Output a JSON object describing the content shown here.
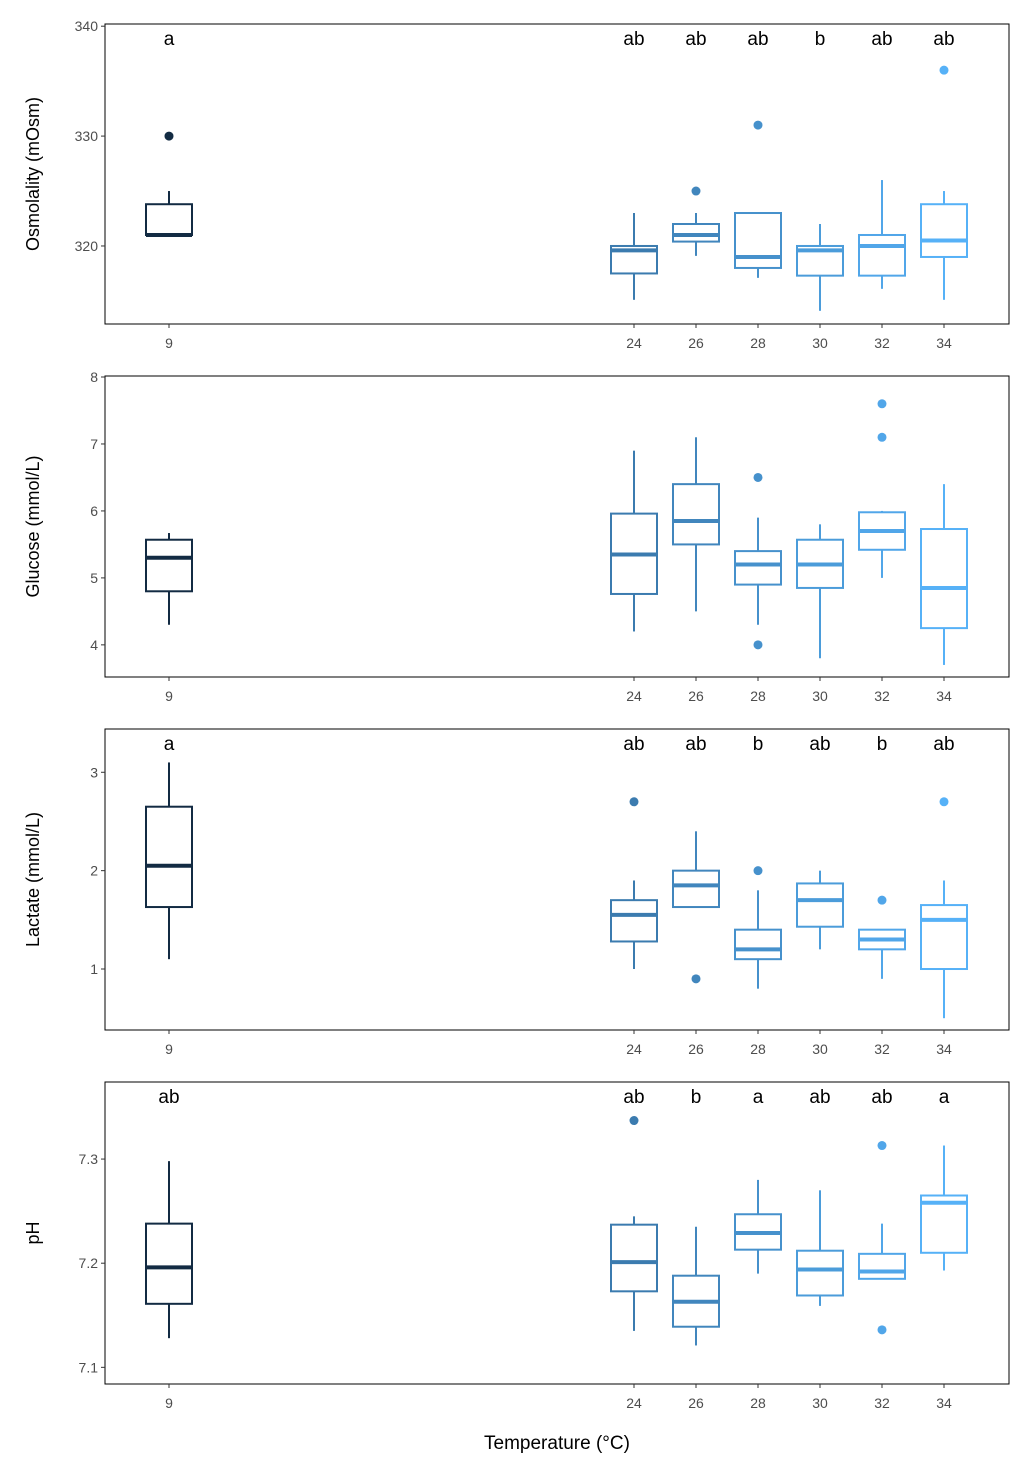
{
  "chart_data": [
    {
      "type": "box",
      "ylabel": "Osmolality (mOsm)",
      "xlabel": "",
      "categories": [
        "9",
        "24",
        "26",
        "28",
        "30",
        "32",
        "34"
      ],
      "ylim": [
        312.9,
        340.2
      ],
      "yticks": [
        320,
        330,
        340
      ],
      "letters": [
        "a",
        "ab",
        "ab",
        "ab",
        "b",
        "ab",
        "ab"
      ],
      "boxes": [
        {
          "lower": 321,
          "q1": 321,
          "median": 321,
          "q3": 323.8,
          "upper": 325,
          "outliers": [
            330
          ]
        },
        {
          "lower": 315.1,
          "q1": 317.5,
          "median": 319.6,
          "q3": 320,
          "upper": 323,
          "outliers": []
        },
        {
          "lower": 319.1,
          "q1": 320.4,
          "median": 321,
          "q3": 322,
          "upper": 323,
          "outliers": [
            325
          ]
        },
        {
          "lower": 317.1,
          "q1": 318,
          "median": 319,
          "q3": 323,
          "upper": 323,
          "outliers": [
            331
          ]
        },
        {
          "lower": 314.1,
          "q1": 317.3,
          "median": 319.6,
          "q3": 320,
          "upper": 322,
          "outliers": []
        },
        {
          "lower": 316.1,
          "q1": 317.3,
          "median": 320,
          "q3": 321,
          "upper": 326,
          "outliers": []
        },
        {
          "lower": 315.1,
          "q1": 319,
          "median": 320.5,
          "q3": 323.8,
          "upper": 325,
          "outliers": [
            336
          ]
        }
      ]
    },
    {
      "type": "box",
      "ylabel": "Glucose (mmol/L)",
      "xlabel": "",
      "categories": [
        "9",
        "24",
        "26",
        "28",
        "30",
        "32",
        "34"
      ],
      "ylim": [
        3.52,
        8.015
      ],
      "yticks": [
        4,
        5,
        6,
        7,
        8
      ],
      "letters": [],
      "boxes": [
        {
          "lower": 4.3,
          "q1": 4.8,
          "median": 5.3,
          "q3": 5.57,
          "upper": 5.67,
          "outliers": []
        },
        {
          "lower": 4.2,
          "q1": 4.76,
          "median": 5.35,
          "q3": 5.96,
          "upper": 6.9,
          "outliers": []
        },
        {
          "lower": 4.5,
          "q1": 5.5,
          "median": 5.85,
          "q3": 6.4,
          "upper": 7.1,
          "outliers": []
        },
        {
          "lower": 4.3,
          "q1": 4.9,
          "median": 5.2,
          "q3": 5.4,
          "upper": 5.9,
          "outliers": [
            6.5,
            4.0
          ]
        },
        {
          "lower": 3.8,
          "q1": 4.85,
          "median": 5.2,
          "q3": 5.57,
          "upper": 5.8,
          "outliers": []
        },
        {
          "lower": 5.0,
          "q1": 5.42,
          "median": 5.7,
          "q3": 5.98,
          "upper": 6.0,
          "outliers": [
            7.6,
            7.1
          ]
        },
        {
          "lower": 3.7,
          "q1": 4.25,
          "median": 4.85,
          "q3": 5.73,
          "upper": 6.4,
          "outliers": []
        }
      ]
    },
    {
      "type": "box",
      "ylabel": "Lactate (mmol/L)",
      "xlabel": "",
      "categories": [
        "9",
        "24",
        "26",
        "28",
        "30",
        "32",
        "34"
      ],
      "ylim": [
        0.38,
        3.44
      ],
      "yticks": [
        1,
        2,
        3
      ],
      "letters": [
        "a",
        "ab",
        "ab",
        "b",
        "ab",
        "b",
        "ab"
      ],
      "boxes": [
        {
          "lower": 1.1,
          "q1": 1.63,
          "median": 2.05,
          "q3": 2.65,
          "upper": 3.1,
          "outliers": []
        },
        {
          "lower": 1.0,
          "q1": 1.28,
          "median": 1.55,
          "q3": 1.7,
          "upper": 1.9,
          "outliers": [
            2.7
          ]
        },
        {
          "lower": 1.63,
          "q1": 1.63,
          "median": 1.85,
          "q3": 2.0,
          "upper": 2.4,
          "outliers": [
            0.9
          ]
        },
        {
          "lower": 0.8,
          "q1": 1.1,
          "median": 1.2,
          "q3": 1.4,
          "upper": 1.8,
          "outliers": [
            2.0
          ]
        },
        {
          "lower": 1.2,
          "q1": 1.43,
          "median": 1.7,
          "q3": 1.87,
          "upper": 2.0,
          "outliers": []
        },
        {
          "lower": 0.9,
          "q1": 1.2,
          "median": 1.3,
          "q3": 1.4,
          "upper": 1.4,
          "outliers": [
            1.7
          ]
        },
        {
          "lower": 0.5,
          "q1": 1.0,
          "median": 1.5,
          "q3": 1.65,
          "upper": 1.9,
          "outliers": [
            2.7
          ]
        }
      ]
    },
    {
      "type": "box",
      "ylabel": "pH",
      "xlabel": "Temperature (°C)",
      "categories": [
        "9",
        "24",
        "26",
        "28",
        "30",
        "32",
        "34"
      ],
      "ylim": [
        7.084,
        7.374
      ],
      "yticks": [
        7.1,
        7.2,
        7.3
      ],
      "letters": [
        "ab",
        "ab",
        "b",
        "a",
        "ab",
        "ab",
        "a"
      ],
      "boxes": [
        {
          "lower": 7.128,
          "q1": 7.161,
          "median": 7.196,
          "q3": 7.238,
          "upper": 7.298,
          "outliers": []
        },
        {
          "lower": 7.135,
          "q1": 7.173,
          "median": 7.201,
          "q3": 7.237,
          "upper": 7.245,
          "outliers": [
            7.337
          ]
        },
        {
          "lower": 7.121,
          "q1": 7.139,
          "median": 7.163,
          "q3": 7.188,
          "upper": 7.235,
          "outliers": []
        },
        {
          "lower": 7.19,
          "q1": 7.213,
          "median": 7.229,
          "q3": 7.247,
          "upper": 7.28,
          "outliers": []
        },
        {
          "lower": 7.159,
          "q1": 7.169,
          "median": 7.194,
          "q3": 7.212,
          "upper": 7.27,
          "outliers": []
        },
        {
          "lower": 7.185,
          "q1": 7.185,
          "median": 7.192,
          "q3": 7.209,
          "upper": 7.238,
          "outliers": [
            7.313,
            7.136
          ]
        },
        {
          "lower": 7.193,
          "q1": 7.21,
          "median": 7.258,
          "q3": 7.265,
          "upper": 7.313,
          "outliers": []
        }
      ]
    }
  ],
  "colors": {
    "low": "#132B43",
    "high": "#56B1F7",
    "groups": [
      "#132B43",
      "#3B7BAF",
      "#4186BD",
      "#4691CC",
      "#4B9CDA",
      "#51A6E9",
      "#56B1F7"
    ]
  }
}
